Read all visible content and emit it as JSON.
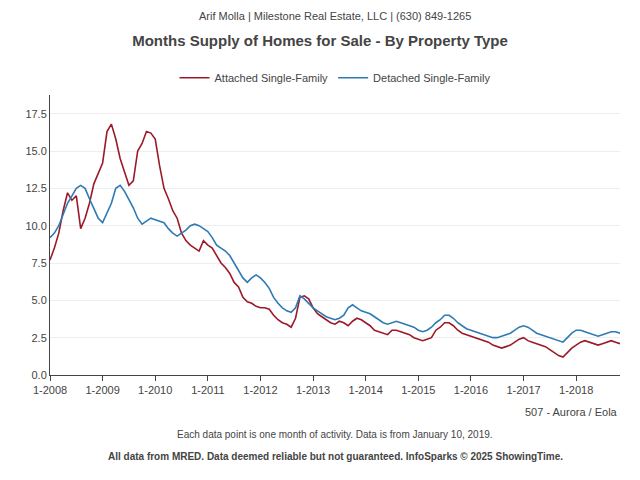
{
  "chart_data": {
    "type": "line",
    "title": "Months Supply of Homes for Sale - By Property Type",
    "annotations": [
      "Arif Molla | Milestone Real Estate, LLC | (630) 849-1265",
      "507 - Aurora / Eola",
      "Each data point is one month of activity. Data is from January 10, 2019.",
      "All data from MRED. Data deemed reliable but not guaranteed. InfoSparks © 2025 ShowingTime."
    ],
    "categories": [
      "1-2008",
      null,
      null,
      null,
      null,
      null,
      null,
      null,
      null,
      null,
      null,
      null,
      "1-2009",
      null,
      null,
      null,
      null,
      null,
      null,
      null,
      null,
      null,
      null,
      null,
      "1-2010",
      null,
      null,
      null,
      null,
      null,
      null,
      null,
      null,
      null,
      null,
      null,
      "1-2011",
      null,
      null,
      null,
      null,
      null,
      null,
      null,
      null,
      null,
      null,
      null,
      "1-2012",
      null,
      null,
      null,
      null,
      null,
      null,
      null,
      null,
      null,
      null,
      null,
      "1-2013",
      null,
      null,
      null,
      null,
      null,
      null,
      null,
      null,
      null,
      null,
      null,
      "1-2014",
      null,
      null,
      null,
      null,
      null,
      null,
      null,
      null,
      null,
      null,
      null,
      "1-2015",
      null,
      null,
      null,
      null,
      null,
      null,
      null,
      null,
      null,
      null,
      null,
      "1-2016",
      null,
      null,
      null,
      null,
      null,
      null,
      null,
      null,
      null,
      null,
      null,
      "1-2017",
      null,
      null,
      null,
      null,
      null,
      null,
      null,
      null,
      null,
      null,
      null,
      "1-2018",
      null,
      null,
      null,
      null,
      null,
      null,
      null,
      null,
      null,
      null
    ],
    "series": [
      {
        "name": "Attached Single-Family",
        "color": "#9b1a2a",
        "values": [
          7.7,
          8.5,
          9.5,
          11.0,
          12.2,
          11.7,
          12.0,
          9.8,
          10.5,
          11.5,
          12.8,
          13.5,
          14.2,
          16.3,
          16.8,
          15.8,
          14.5,
          13.6,
          12.7,
          13.0,
          15.0,
          15.5,
          16.3,
          16.2,
          15.8,
          14.0,
          12.5,
          11.8,
          11.0,
          10.5,
          9.5,
          9.0,
          8.7,
          8.5,
          8.3,
          9.0,
          8.7,
          8.5,
          8.0,
          7.5,
          7.2,
          6.8,
          6.2,
          5.9,
          5.2,
          4.9,
          4.8,
          4.6,
          4.5,
          4.5,
          4.4,
          4.0,
          3.7,
          3.5,
          3.4,
          3.2,
          3.8,
          5.2,
          5.3,
          5.1,
          4.5,
          4.1,
          3.9,
          3.7,
          3.5,
          3.4,
          3.6,
          3.5,
          3.3,
          3.6,
          3.8,
          3.7,
          3.5,
          3.3,
          3.0,
          2.9,
          2.8,
          2.7,
          3.0,
          3.0,
          2.9,
          2.8,
          2.7,
          2.5,
          2.4,
          2.3,
          2.4,
          2.5,
          3.0,
          3.2,
          3.5,
          3.5,
          3.3,
          3.0,
          2.8,
          2.7,
          2.6,
          2.5,
          2.4,
          2.3,
          2.2,
          2.0,
          1.9,
          1.8,
          1.9,
          2.0,
          2.2,
          2.4,
          2.5,
          2.3,
          2.2,
          2.1,
          2.0,
          1.9,
          1.7,
          1.5,
          1.3,
          1.2,
          1.5,
          1.8,
          2.0,
          2.2,
          2.3,
          2.2,
          2.1,
          2.0,
          2.1,
          2.2,
          2.3,
          2.2,
          2.1
        ]
      },
      {
        "name": "Detached Single-Family",
        "color": "#2e7ab5",
        "values": [
          9.2,
          9.5,
          10.0,
          10.8,
          11.5,
          12.0,
          12.5,
          12.7,
          12.5,
          11.8,
          11.2,
          10.5,
          10.2,
          10.8,
          11.5,
          12.5,
          12.7,
          12.3,
          11.8,
          11.2,
          10.5,
          10.1,
          10.3,
          10.5,
          10.4,
          10.3,
          10.2,
          9.8,
          9.5,
          9.3,
          9.5,
          9.7,
          10.0,
          10.1,
          10.0,
          9.8,
          9.6,
          9.2,
          8.7,
          8.5,
          8.3,
          8.0,
          7.5,
          7.0,
          6.5,
          6.2,
          6.5,
          6.7,
          6.5,
          6.2,
          5.8,
          5.2,
          4.8,
          4.5,
          4.3,
          4.2,
          4.5,
          5.3,
          5.1,
          4.8,
          4.5,
          4.3,
          4.1,
          3.9,
          3.8,
          3.7,
          3.8,
          4.0,
          4.5,
          4.7,
          4.5,
          4.3,
          4.2,
          4.1,
          3.9,
          3.7,
          3.5,
          3.4,
          3.5,
          3.6,
          3.5,
          3.4,
          3.3,
          3.2,
          3.0,
          2.9,
          3.0,
          3.2,
          3.5,
          3.7,
          4.0,
          4.0,
          3.8,
          3.5,
          3.3,
          3.1,
          3.0,
          2.9,
          2.8,
          2.7,
          2.6,
          2.5,
          2.5,
          2.6,
          2.7,
          2.8,
          3.0,
          3.2,
          3.3,
          3.2,
          3.0,
          2.8,
          2.7,
          2.6,
          2.5,
          2.4,
          2.3,
          2.2,
          2.5,
          2.8,
          3.0,
          3.0,
          2.9,
          2.8,
          2.7,
          2.6,
          2.7,
          2.8,
          2.9,
          2.9,
          2.8
        ]
      }
    ],
    "ylim": [
      0,
      18.75
    ],
    "yticks": [
      {
        "value": 0.0,
        "label": "0.0"
      },
      2.5,
      {
        "value": 5.0,
        "label": "5.0"
      },
      7.5,
      {
        "value": 10.0,
        "label": "10.0"
      },
      12.5,
      {
        "value": 15.0,
        "label": "15.0"
      },
      17.5
    ],
    "grid": true,
    "legend": "top"
  }
}
